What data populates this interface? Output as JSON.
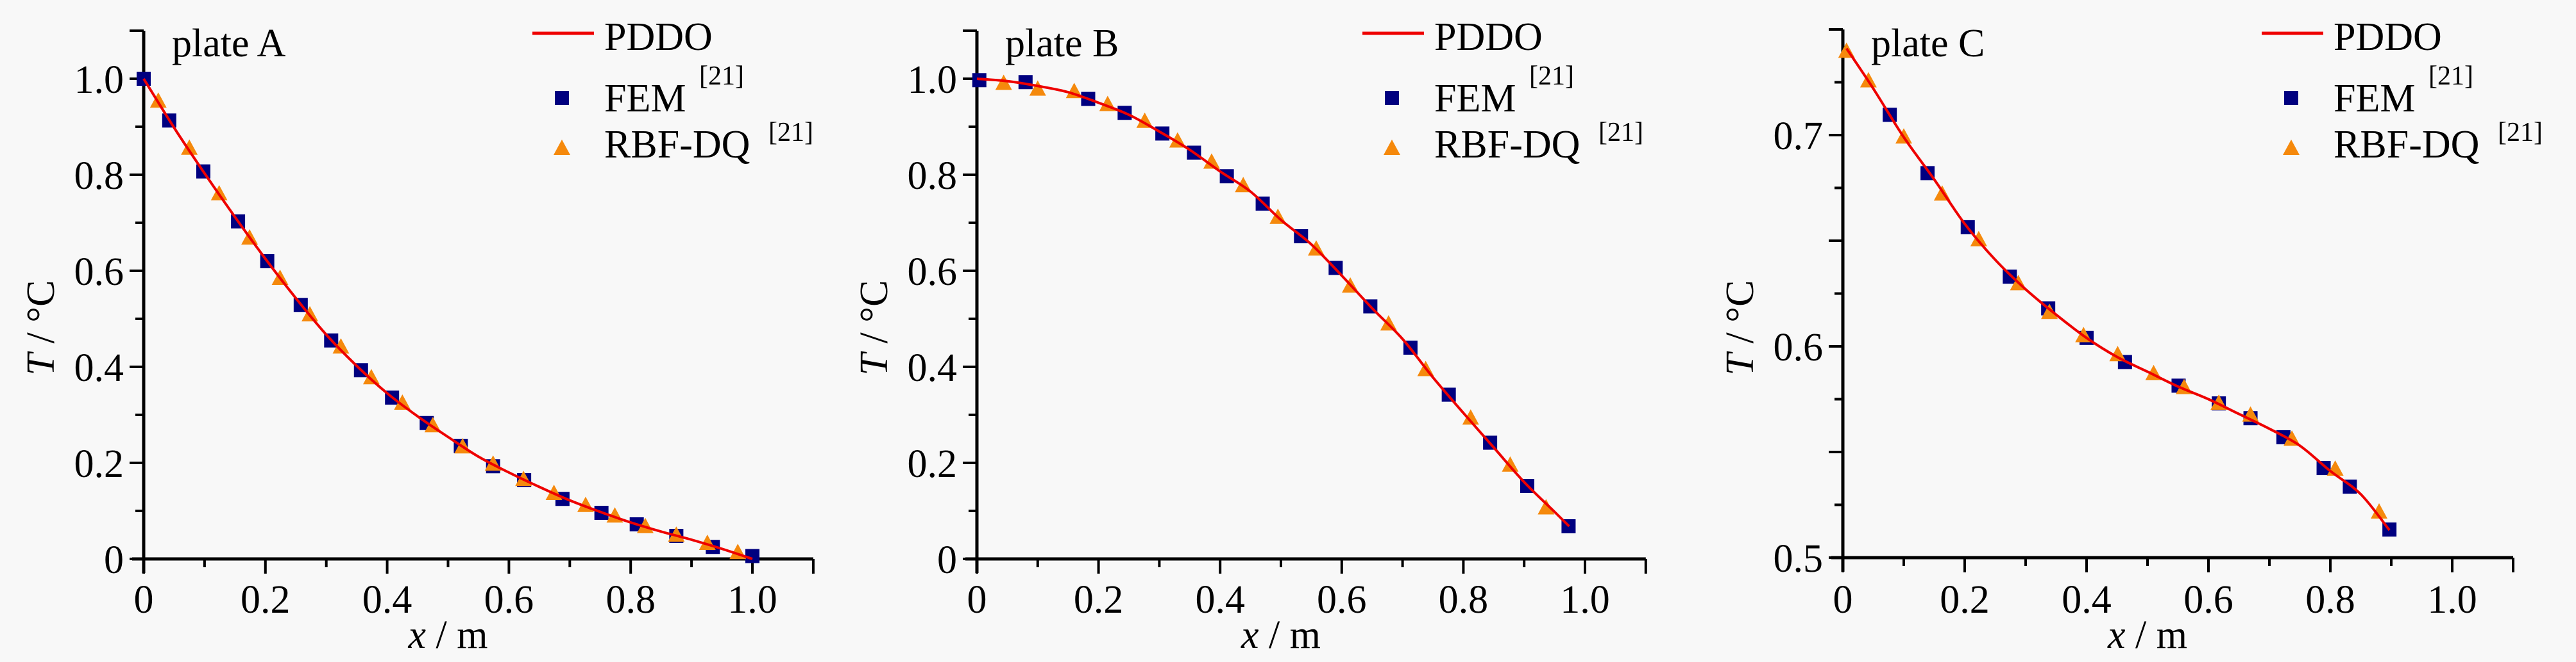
{
  "colors": {
    "background": "#f8f8f8",
    "pddo": "#ee0000",
    "fem": "#000080",
    "rbf_dq": "#f5890c",
    "axis": "#000000"
  },
  "chart_data": [
    {
      "type": "line",
      "title": "plate A",
      "xlabel_var": "x",
      "xlabel_unit": " / m",
      "ylabel_var": "T",
      "ylabel_unit": " / °C",
      "xlim": [
        0,
        1.1
      ],
      "ylim": [
        0,
        1.1
      ],
      "x_ticks": [
        0,
        0.2,
        0.4,
        0.6,
        0.8,
        1.0
      ],
      "x_tick_labels": [
        "0",
        "0.2",
        "0.4",
        "0.6",
        "0.8",
        "1.0"
      ],
      "x_minor_step": 0.1,
      "y_ticks": [
        0,
        0.2,
        0.4,
        0.6,
        0.8,
        1.0
      ],
      "y_tick_labels": [
        "0",
        "0.2",
        "0.4",
        "0.6",
        "0.8",
        "1.0"
      ],
      "y_minor_step": 0.1,
      "grid": false,
      "legend": {
        "position": "top-right",
        "entries": [
          {
            "label": "PDDO",
            "sup": "",
            "marker": "line"
          },
          {
            "label": "FEM",
            "sup": "[21]",
            "marker": "square"
          },
          {
            "label": "RBF-DQ",
            "sup": "[21]",
            "marker": "triangle"
          }
        ]
      },
      "series": [
        {
          "name": "PDDO",
          "kind": "line",
          "x": [
            0,
            0.05,
            0.1,
            0.15,
            0.2,
            0.25,
            0.3,
            0.35,
            0.4,
            0.45,
            0.5,
            0.55,
            0.6,
            0.65,
            0.7,
            0.75,
            0.8,
            0.85,
            0.9,
            0.95,
            1.0
          ],
          "y": [
            1.0,
            0.898,
            0.803,
            0.712,
            0.625,
            0.543,
            0.467,
            0.402,
            0.345,
            0.297,
            0.254,
            0.213,
            0.18,
            0.15,
            0.122,
            0.098,
            0.076,
            0.057,
            0.04,
            0.021,
            0.0
          ]
        },
        {
          "name": "FEM",
          "kind": "scatter",
          "x": [
            0,
            0.042,
            0.098,
            0.155,
            0.203,
            0.258,
            0.308,
            0.357,
            0.408,
            0.465,
            0.521,
            0.574,
            0.625,
            0.688,
            0.752,
            0.81,
            0.875,
            0.935,
            1.0
          ],
          "y": [
            1.0,
            0.913,
            0.807,
            0.703,
            0.62,
            0.529,
            0.455,
            0.393,
            0.336,
            0.283,
            0.235,
            0.193,
            0.164,
            0.125,
            0.096,
            0.072,
            0.048,
            0.025,
            0.006
          ]
        },
        {
          "name": "RBF-DQ",
          "kind": "scatter",
          "x": [
            0.024,
            0.075,
            0.124,
            0.174,
            0.224,
            0.273,
            0.324,
            0.374,
            0.425,
            0.475,
            0.524,
            0.574,
            0.624,
            0.674,
            0.726,
            0.774,
            0.824,
            0.875,
            0.926,
            0.976
          ],
          "y": [
            0.953,
            0.855,
            0.76,
            0.668,
            0.584,
            0.508,
            0.441,
            0.377,
            0.324,
            0.277,
            0.233,
            0.197,
            0.165,
            0.136,
            0.111,
            0.089,
            0.067,
            0.049,
            0.032,
            0.013
          ]
        }
      ]
    },
    {
      "type": "line",
      "title": "plate B",
      "xlabel_var": "x",
      "xlabel_unit": " / m",
      "ylabel_var": "T",
      "ylabel_unit": " / °C",
      "xlim": [
        0,
        1.1
      ],
      "ylim": [
        0,
        1.1
      ],
      "x_ticks": [
        0,
        0.2,
        0.4,
        0.6,
        0.8,
        1.0
      ],
      "x_tick_labels": [
        "0",
        "0.2",
        "0.4",
        "0.6",
        "0.8",
        "1.0"
      ],
      "x_minor_step": 0.1,
      "y_ticks": [
        0,
        0.2,
        0.4,
        0.6,
        0.8,
        1.0
      ],
      "y_tick_labels": [
        "0",
        "0.2",
        "0.4",
        "0.6",
        "0.8",
        "1.0"
      ],
      "y_minor_step": 0.1,
      "grid": false,
      "legend": {
        "position": "top-right",
        "entries": [
          {
            "label": "PDDO",
            "sup": "",
            "marker": "line"
          },
          {
            "label": "FEM",
            "sup": "[21]",
            "marker": "square"
          },
          {
            "label": "RBF-DQ",
            "sup": "[21]",
            "marker": "triangle"
          }
        ]
      },
      "series": [
        {
          "name": "PDDO",
          "kind": "line",
          "x": [
            0,
            0.05,
            0.1,
            0.15,
            0.2,
            0.25,
            0.3,
            0.35,
            0.4,
            0.45,
            0.5,
            0.55,
            0.6,
            0.65,
            0.7,
            0.75,
            0.8,
            0.85,
            0.9,
            0.95,
            0.974
          ],
          "y": [
            1.0,
            0.995,
            0.985,
            0.972,
            0.95,
            0.925,
            0.89,
            0.852,
            0.807,
            0.765,
            0.706,
            0.655,
            0.59,
            0.522,
            0.458,
            0.378,
            0.304,
            0.232,
            0.16,
            0.098,
            0.068
          ]
        },
        {
          "name": "FEM",
          "kind": "scatter",
          "x": [
            0.004,
            0.08,
            0.183,
            0.243,
            0.305,
            0.357,
            0.411,
            0.47,
            0.533,
            0.59,
            0.647,
            0.713,
            0.776,
            0.844,
            0.905,
            0.973
          ],
          "y": [
            0.997,
            0.993,
            0.958,
            0.929,
            0.886,
            0.846,
            0.797,
            0.74,
            0.672,
            0.606,
            0.526,
            0.44,
            0.342,
            0.242,
            0.152,
            0.068
          ]
        },
        {
          "name": "RBF-DQ",
          "kind": "scatter",
          "x": [
            0.044,
            0.1,
            0.16,
            0.215,
            0.276,
            0.33,
            0.386,
            0.438,
            0.495,
            0.558,
            0.614,
            0.677,
            0.738,
            0.812,
            0.877,
            0.936
          ],
          "y": [
            0.99,
            0.978,
            0.973,
            0.946,
            0.911,
            0.87,
            0.826,
            0.777,
            0.711,
            0.645,
            0.568,
            0.489,
            0.394,
            0.293,
            0.195,
            0.106
          ]
        }
      ]
    },
    {
      "type": "line",
      "title": "plate C",
      "xlabel_var": "x",
      "xlabel_unit": " / m",
      "ylabel_var": "T",
      "ylabel_unit": " / °C",
      "xlim": [
        0,
        1.1
      ],
      "ylim": [
        0.5,
        0.75
      ],
      "x_ticks": [
        0,
        0.2,
        0.4,
        0.6,
        0.8,
        1.0
      ],
      "x_tick_labels": [
        "0",
        "0.2",
        "0.4",
        "0.6",
        "0.8",
        "1.0"
      ],
      "x_minor_step": 0.1,
      "y_ticks": [
        0.5,
        0.6,
        0.7
      ],
      "y_tick_labels": [
        "0.5",
        "0.6",
        "0.7"
      ],
      "y_minor_step": 0.025,
      "grid": false,
      "legend": {
        "position": "top-right",
        "entries": [
          {
            "label": "PDDO",
            "sup": "",
            "marker": "line"
          },
          {
            "label": "FEM",
            "sup": "[21]",
            "marker": "square"
          },
          {
            "label": "RBF-DQ",
            "sup": "[21]",
            "marker": "triangle"
          }
        ]
      },
      "series": [
        {
          "name": "PDDO",
          "kind": "line",
          "x": [
            0.006,
            0.05,
            0.1,
            0.15,
            0.2,
            0.25,
            0.3,
            0.35,
            0.4,
            0.45,
            0.5,
            0.55,
            0.6,
            0.65,
            0.7,
            0.75,
            0.8,
            0.85,
            0.897
          ],
          "y": [
            0.741,
            0.722,
            0.699,
            0.679,
            0.658,
            0.641,
            0.627,
            0.615,
            0.604,
            0.595,
            0.588,
            0.581,
            0.575,
            0.568,
            0.561,
            0.553,
            0.541,
            0.53,
            0.513
          ]
        },
        {
          "name": "FEM",
          "kind": "scatter",
          "x": [
            0.077,
            0.139,
            0.205,
            0.274,
            0.337,
            0.4,
            0.463,
            0.551,
            0.617,
            0.669,
            0.723,
            0.789,
            0.832,
            0.897
          ],
          "y": [
            0.7096,
            0.682,
            0.6564,
            0.633,
            0.618,
            0.604,
            0.5926,
            0.5814,
            0.573,
            0.566,
            0.557,
            0.5424,
            0.5336,
            0.5133
          ]
        },
        {
          "name": "RBF-DQ",
          "kind": "scatter",
          "x": [
            0.006,
            0.042,
            0.1,
            0.163,
            0.223,
            0.288,
            0.339,
            0.395,
            0.451,
            0.51,
            0.56,
            0.617,
            0.669,
            0.737,
            0.808,
            0.88
          ],
          "y": [
            0.7396,
            0.7256,
            0.699,
            0.672,
            0.6504,
            0.6296,
            0.616,
            0.605,
            0.596,
            0.587,
            0.5804,
            0.573,
            0.5674,
            0.556,
            0.5418,
            0.5215
          ]
        }
      ]
    }
  ]
}
